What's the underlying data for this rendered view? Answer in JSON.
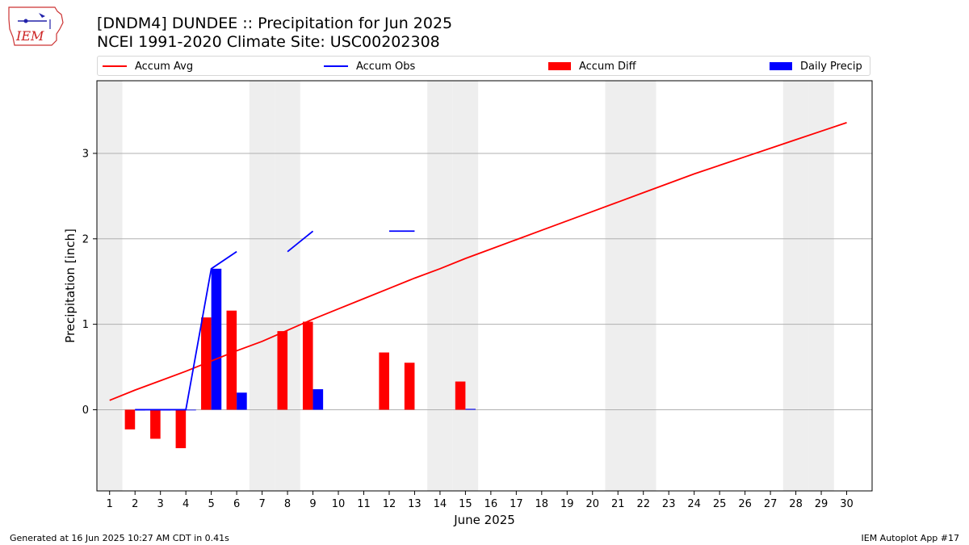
{
  "header": {
    "title_line1": "[DNDM4] DUNDEE :: Precipitation for Jun 2025",
    "title_line2": "NCEI 1991-2020 Climate Site: USC00202308",
    "logo_text": "IEM"
  },
  "footer": {
    "left": "Generated at 16 Jun 2025 10:27 AM CDT in 0.41s",
    "right": "IEM Autoplot App #17"
  },
  "colors": {
    "avg": "#ff0000",
    "obs": "#0000ff",
    "diff": "#ff0000",
    "daily": "#0000ff",
    "weekend_shade": "#eeeeee",
    "grid": "#b0b0b0"
  },
  "chart_data": {
    "type": "bar",
    "xlabel": "June 2025",
    "ylabel": "Precipitation [inch]",
    "xlim": [
      0.5,
      31.0
    ],
    "ylim": [
      -0.95,
      3.85
    ],
    "yticks": [
      0,
      1,
      2,
      3
    ],
    "grid": "y",
    "legend_position": "top",
    "x": [
      1,
      2,
      3,
      4,
      5,
      6,
      7,
      8,
      9,
      10,
      11,
      12,
      13,
      14,
      15,
      16,
      17,
      18,
      19,
      20,
      21,
      22,
      23,
      24,
      25,
      26,
      27,
      28,
      29,
      30
    ],
    "weekend_days": [
      1,
      7,
      8,
      14,
      15,
      21,
      22,
      28,
      29
    ],
    "series": [
      {
        "name": "Accum Avg",
        "kind": "line",
        "color": "#ff0000",
        "values": [
          0.11,
          0.23,
          0.34,
          0.45,
          0.57,
          0.69,
          0.8,
          0.93,
          1.06,
          1.18,
          1.3,
          1.42,
          1.54,
          1.65,
          1.77,
          1.88,
          1.99,
          2.1,
          2.21,
          2.32,
          2.43,
          2.54,
          2.65,
          2.76,
          2.86,
          2.96,
          3.06,
          3.16,
          3.26,
          3.36
        ]
      },
      {
        "name": "Accum Obs",
        "kind": "line",
        "color": "#0000ff",
        "values": [
          null,
          0.0,
          0.0,
          0.0,
          1.65,
          1.85,
          null,
          1.85,
          2.09,
          null,
          null,
          2.09,
          2.09,
          null,
          null,
          null,
          null,
          null,
          null,
          null,
          null,
          null,
          null,
          null,
          null,
          null,
          null,
          null,
          null,
          null
        ]
      },
      {
        "name": "Accum Diff",
        "kind": "bar",
        "color": "#ff0000",
        "values": [
          null,
          -0.23,
          -0.34,
          -0.45,
          1.08,
          1.16,
          null,
          0.92,
          1.03,
          null,
          null,
          0.67,
          0.55,
          null,
          0.33,
          null,
          null,
          null,
          null,
          null,
          null,
          null,
          null,
          null,
          null,
          null,
          null,
          null,
          null,
          null
        ]
      },
      {
        "name": "Daily Precip",
        "kind": "bar",
        "color": "#0000ff",
        "values": [
          null,
          0.0,
          0.0,
          0.0,
          1.65,
          0.2,
          null,
          null,
          0.24,
          null,
          null,
          null,
          null,
          null,
          0.01,
          null,
          null,
          null,
          null,
          null,
          null,
          null,
          null,
          null,
          null,
          null,
          null,
          null,
          null,
          null
        ]
      }
    ]
  }
}
